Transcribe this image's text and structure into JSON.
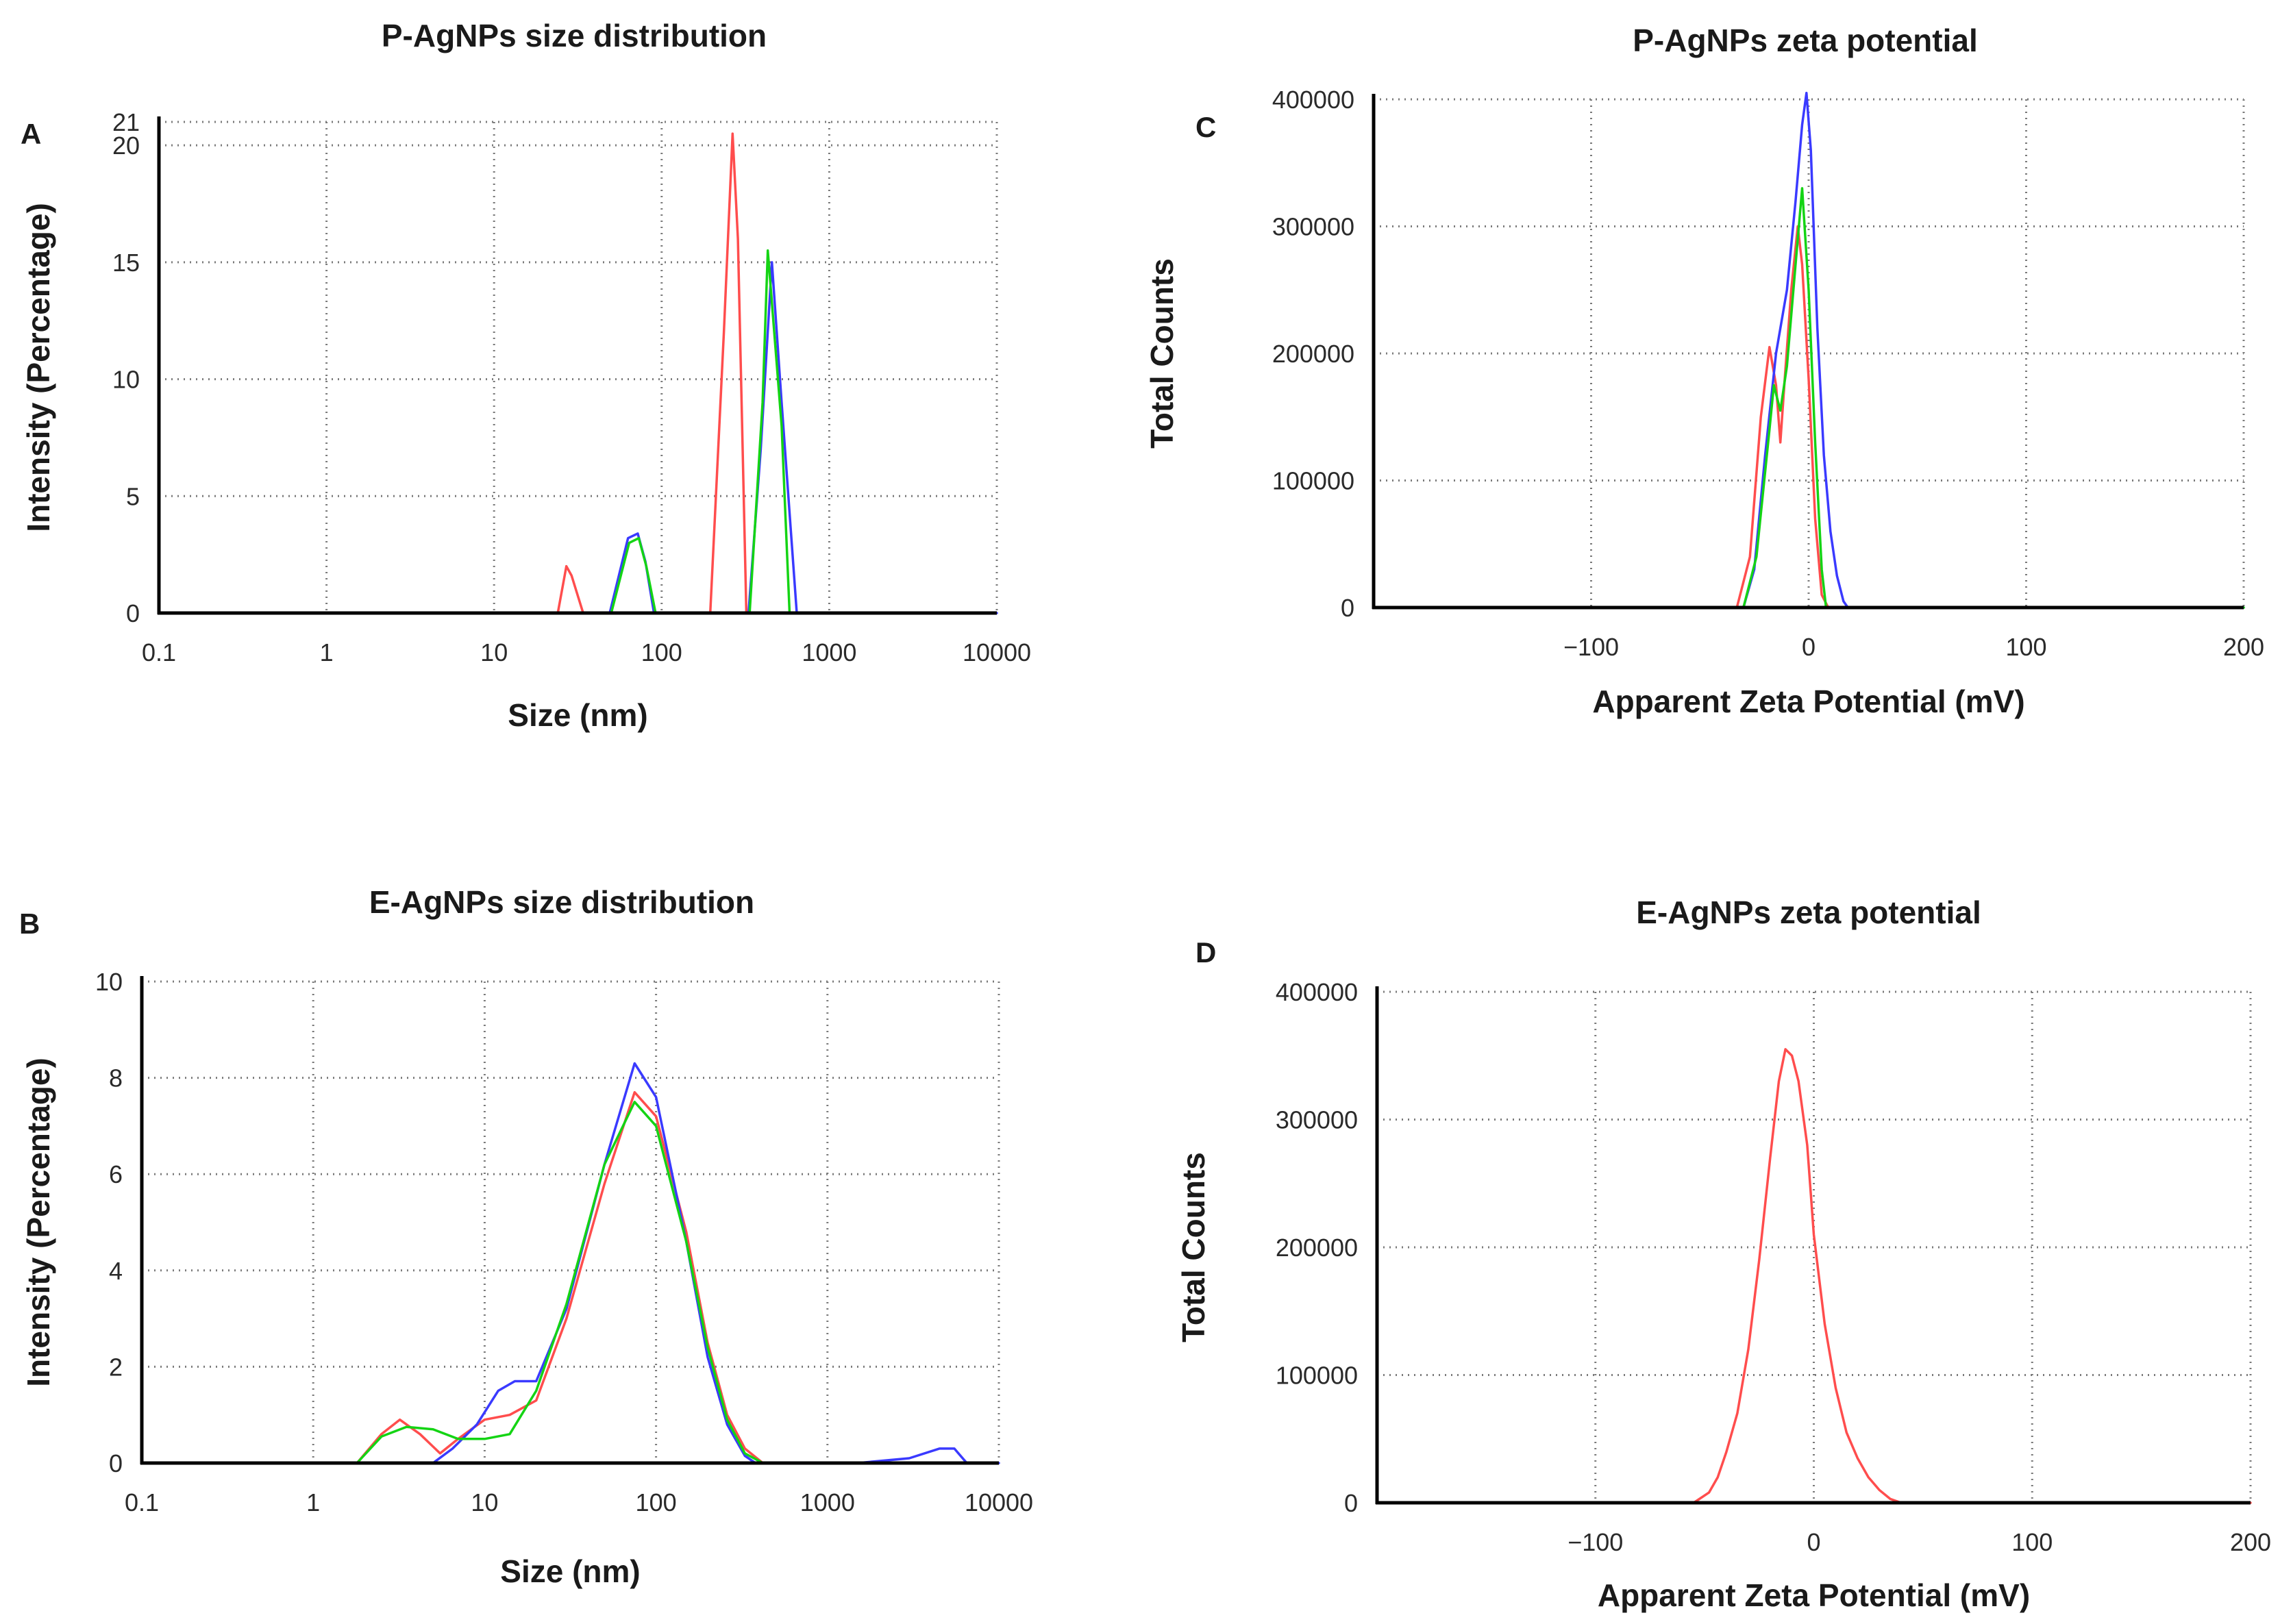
{
  "chart_data": [
    {
      "panel": "A",
      "type": "line",
      "title": "P-AgNPs size distribution",
      "xlabel": "Size (nm)",
      "ylabel": "Intensity (Percentage)",
      "xscale": "log",
      "xlim": [
        0.1,
        10000
      ],
      "ylim": [
        0,
        21
      ],
      "xticks": [
        0.1,
        1,
        10,
        100,
        1000,
        10000
      ],
      "xtick_labels": [
        "0.1",
        "1",
        "10",
        "100",
        "1000",
        "10000"
      ],
      "yticks": [
        0,
        5,
        10,
        15,
        20,
        21
      ],
      "ytick_labels": [
        "0",
        "5",
        "10",
        "15",
        "20",
        "21"
      ],
      "grid": true,
      "series": [
        {
          "name": "red",
          "color": "#ff4d4d",
          "points": [
            [
              0.38,
              0
            ],
            [
              24,
              0
            ],
            [
              27,
              2.0
            ],
            [
              29,
              1.6
            ],
            [
              34,
              0
            ],
            [
              195,
              0
            ],
            [
              235,
              12
            ],
            [
              265,
              20.5
            ],
            [
              285,
              16
            ],
            [
              320,
              0
            ],
            [
              2300,
              0
            ],
            [
              6000,
              0
            ]
          ]
        },
        {
          "name": "blue",
          "color": "#3a3aff",
          "points": [
            [
              0.38,
              0
            ],
            [
              49,
              0
            ],
            [
              63,
              3.2
            ],
            [
              72,
              3.4
            ],
            [
              80,
              2.2
            ],
            [
              90,
              0
            ],
            [
              330,
              0
            ],
            [
              390,
              7
            ],
            [
              455,
              15
            ],
            [
              520,
              9
            ],
            [
              640,
              0
            ],
            [
              2300,
              0
            ],
            [
              10000,
              0
            ]
          ]
        },
        {
          "name": "green",
          "color": "#14d414",
          "points": [
            [
              0.38,
              0
            ],
            [
              50,
              0
            ],
            [
              64,
              3.0
            ],
            [
              73,
              3.2
            ],
            [
              81,
              2.0
            ],
            [
              92,
              0
            ],
            [
              335,
              0
            ],
            [
              400,
              9
            ],
            [
              430,
              15.5
            ],
            [
              520,
              8
            ],
            [
              580,
              0
            ],
            [
              2300,
              0
            ],
            [
              6000,
              0
            ]
          ]
        }
      ]
    },
    {
      "panel": "B",
      "type": "line",
      "title": "E-AgNPs size distribution",
      "xlabel": "Size (nm)",
      "ylabel": "Intensity (Percentage)",
      "xscale": "log",
      "xlim": [
        0.1,
        10000
      ],
      "ylim": [
        0,
        10
      ],
      "xticks": [
        0.1,
        1,
        10,
        100,
        1000,
        10000
      ],
      "xtick_labels": [
        "0.1",
        "1",
        "10",
        "100",
        "1000",
        "10000"
      ],
      "yticks": [
        0,
        2,
        4,
        6,
        8,
        10
      ],
      "ytick_labels": [
        "0",
        "2",
        "4",
        "6",
        "8",
        "10"
      ],
      "grid": true,
      "series": [
        {
          "name": "red",
          "color": "#ff4d4d",
          "points": [
            [
              0.8,
              0
            ],
            [
              1.8,
              0
            ],
            [
              2.5,
              0.6
            ],
            [
              3.2,
              0.9
            ],
            [
              4.2,
              0.6
            ],
            [
              5.5,
              0.2
            ],
            [
              7,
              0.5
            ],
            [
              10,
              0.9
            ],
            [
              14,
              1.0
            ],
            [
              20,
              1.3
            ],
            [
              30,
              3
            ],
            [
              50,
              5.8
            ],
            [
              75,
              7.7
            ],
            [
              100,
              7.2
            ],
            [
              150,
              4.8
            ],
            [
              200,
              2.5
            ],
            [
              260,
              1.0
            ],
            [
              330,
              0.3
            ],
            [
              420,
              0
            ],
            [
              1000,
              0
            ]
          ]
        },
        {
          "name": "blue",
          "color": "#3a3aff",
          "points": [
            [
              0.5,
              0
            ],
            [
              1,
              0
            ],
            [
              5,
              0
            ],
            [
              6.5,
              0.3
            ],
            [
              9,
              0.8
            ],
            [
              12,
              1.5
            ],
            [
              15,
              1.7
            ],
            [
              20,
              1.7
            ],
            [
              30,
              3.2
            ],
            [
              50,
              6.2
            ],
            [
              75,
              8.3
            ],
            [
              100,
              7.6
            ],
            [
              150,
              4.6
            ],
            [
              200,
              2.2
            ],
            [
              260,
              0.8
            ],
            [
              330,
              0.15
            ],
            [
              380,
              0
            ],
            [
              1500,
              0
            ],
            [
              3000,
              0.1
            ],
            [
              4500,
              0.3
            ],
            [
              5500,
              0.3
            ],
            [
              6500,
              0
            ],
            [
              10000,
              0
            ]
          ]
        },
        {
          "name": "green",
          "color": "#14d414",
          "points": [
            [
              0.8,
              0
            ],
            [
              1.8,
              0
            ],
            [
              2.5,
              0.55
            ],
            [
              3.5,
              0.75
            ],
            [
              5,
              0.7
            ],
            [
              7,
              0.5
            ],
            [
              10,
              0.5
            ],
            [
              14,
              0.6
            ],
            [
              20,
              1.5
            ],
            [
              30,
              3.3
            ],
            [
              50,
              6.2
            ],
            [
              75,
              7.5
            ],
            [
              100,
              7.0
            ],
            [
              150,
              4.6
            ],
            [
              200,
              2.4
            ],
            [
              260,
              0.9
            ],
            [
              330,
              0.2
            ],
            [
              420,
              0
            ],
            [
              1000,
              0
            ]
          ]
        }
      ]
    },
    {
      "panel": "C",
      "type": "line",
      "title": "P-AgNPs zeta potential",
      "xlabel": "Apparent Zeta Potential  (mV)",
      "ylabel": "Total Counts",
      "xscale": "linear",
      "xlim": [
        -200,
        200
      ],
      "ylim": [
        0,
        400000
      ],
      "xticks": [
        -100,
        0,
        100,
        200
      ],
      "xtick_labels": [
        "−100",
        "0",
        "100",
        "200"
      ],
      "yticks": [
        0,
        100000,
        200000,
        300000,
        400000
      ],
      "ytick_labels": [
        "0",
        "100000",
        "200000",
        "300000",
        "400000"
      ],
      "grid": true,
      "series": [
        {
          "name": "red",
          "color": "#ff4d4d",
          "points": [
            [
              -200,
              0
            ],
            [
              -33,
              0
            ],
            [
              -27,
              40000
            ],
            [
              -22,
              150000
            ],
            [
              -18,
              205000
            ],
            [
              -15,
              175000
            ],
            [
              -13,
              130000
            ],
            [
              -11,
              180000
            ],
            [
              -8,
              250000
            ],
            [
              -5,
              300000
            ],
            [
              -3,
              270000
            ],
            [
              0,
              180000
            ],
            [
              3,
              70000
            ],
            [
              6,
              10000
            ],
            [
              9,
              0
            ],
            [
              200,
              0
            ]
          ]
        },
        {
          "name": "blue",
          "color": "#3a3aff",
          "points": [
            [
              -200,
              0
            ],
            [
              -30,
              0
            ],
            [
              -25,
              30000
            ],
            [
              -20,
              120000
            ],
            [
              -15,
              200000
            ],
            [
              -10,
              250000
            ],
            [
              -6,
              320000
            ],
            [
              -3,
              380000
            ],
            [
              -1,
              405000
            ],
            [
              1,
              360000
            ],
            [
              4,
              220000
            ],
            [
              7,
              120000
            ],
            [
              10,
              60000
            ],
            [
              13,
              25000
            ],
            [
              16,
              5000
            ],
            [
              18,
              0
            ],
            [
              200,
              0
            ]
          ]
        },
        {
          "name": "green",
          "color": "#14d414",
          "points": [
            [
              -200,
              0
            ],
            [
              -30,
              0
            ],
            [
              -24,
              40000
            ],
            [
              -18,
              140000
            ],
            [
              -16,
              175000
            ],
            [
              -13,
              155000
            ],
            [
              -10,
              190000
            ],
            [
              -6,
              270000
            ],
            [
              -3,
              330000
            ],
            [
              0,
              250000
            ],
            [
              3,
              130000
            ],
            [
              6,
              30000
            ],
            [
              8,
              0
            ],
            [
              200,
              0
            ]
          ]
        }
      ]
    },
    {
      "panel": "D",
      "type": "line",
      "title": "E-AgNPs zeta potential",
      "xlabel": "Apparent Zeta Potential  (mV)",
      "ylabel": "Total Counts",
      "xscale": "linear",
      "xlim": [
        -200,
        200
      ],
      "ylim": [
        0,
        400000
      ],
      "xticks": [
        -100,
        0,
        100,
        200
      ],
      "xtick_labels": [
        "−100",
        "0",
        "100",
        "200"
      ],
      "yticks": [
        0,
        100000,
        200000,
        300000,
        400000
      ],
      "ytick_labels": [
        "0",
        "100000",
        "200000",
        "300000",
        "400000"
      ],
      "grid": true,
      "series": [
        {
          "name": "red",
          "color": "#ff4d4d",
          "points": [
            [
              -200,
              0
            ],
            [
              -55,
              0
            ],
            [
              -48,
              8000
            ],
            [
              -44,
              20000
            ],
            [
              -40,
              40000
            ],
            [
              -35,
              70000
            ],
            [
              -30,
              120000
            ],
            [
              -25,
              190000
            ],
            [
              -20,
              270000
            ],
            [
              -16,
              330000
            ],
            [
              -13,
              355000
            ],
            [
              -10,
              350000
            ],
            [
              -7,
              330000
            ],
            [
              -3,
              280000
            ],
            [
              0,
              210000
            ],
            [
              5,
              140000
            ],
            [
              10,
              90000
            ],
            [
              15,
              55000
            ],
            [
              20,
              35000
            ],
            [
              25,
              20000
            ],
            [
              30,
              10000
            ],
            [
              35,
              3000
            ],
            [
              40,
              0
            ],
            [
              200,
              0
            ]
          ]
        }
      ]
    }
  ]
}
